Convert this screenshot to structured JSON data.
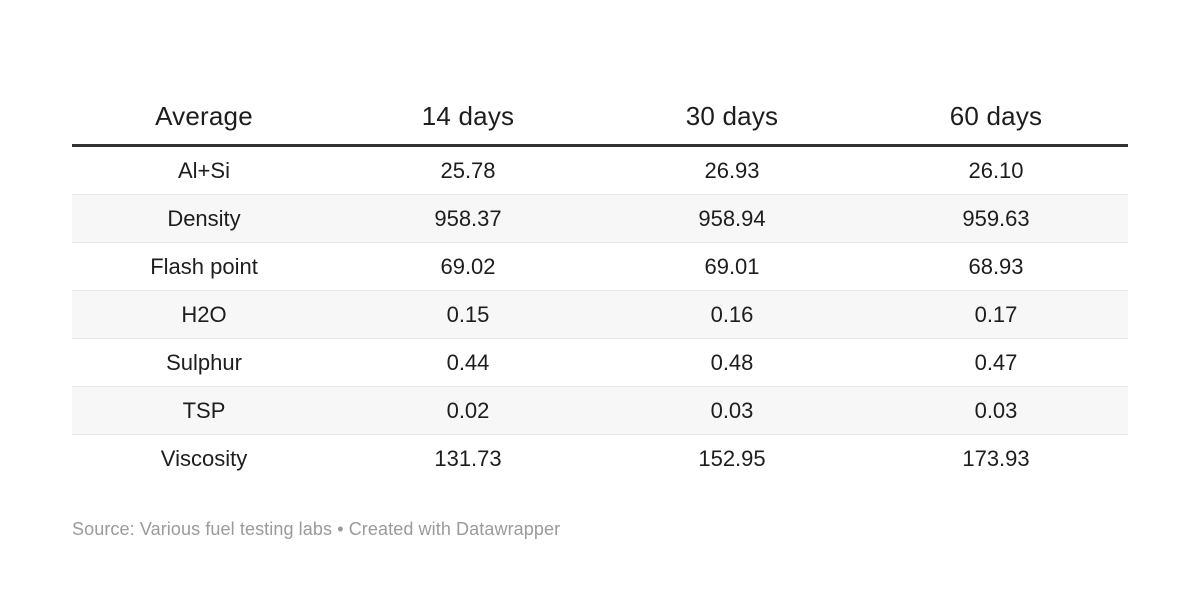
{
  "table": {
    "columns": [
      "Average",
      "14 days",
      "30 days",
      "60 days"
    ],
    "rows": [
      {
        "label": "Al+Si",
        "values": [
          "25.78",
          "26.93",
          "26.10"
        ]
      },
      {
        "label": "Density",
        "values": [
          "958.37",
          "958.94",
          "959.63"
        ]
      },
      {
        "label": "Flash point",
        "values": [
          "69.02",
          "69.01",
          "68.93"
        ]
      },
      {
        "label": "H2O",
        "values": [
          "0.15",
          "0.16",
          "0.17"
        ]
      },
      {
        "label": "Sulphur",
        "values": [
          "0.44",
          "0.48",
          "0.47"
        ]
      },
      {
        "label": "TSP",
        "values": [
          "0.02",
          "0.03",
          "0.03"
        ]
      },
      {
        "label": "Viscosity",
        "values": [
          "131.73",
          "152.95",
          "173.93"
        ]
      }
    ]
  },
  "footer": {
    "text": "Source: Various fuel testing labs • Created with Datawrapper"
  },
  "colors": {
    "text": "#1d1d1d",
    "header_rule": "#333333",
    "row_stripe": "#f7f7f7",
    "row_separator": "#e9e9e9",
    "footer_text": "#9a9a9a",
    "background": "#ffffff"
  },
  "chart_data": {
    "type": "table",
    "title": "",
    "columns": [
      "Average",
      "14 days",
      "30 days",
      "60 days"
    ],
    "rows": [
      [
        "Al+Si",
        25.78,
        26.93,
        26.1
      ],
      [
        "Density",
        958.37,
        958.94,
        959.63
      ],
      [
        "Flash point",
        69.02,
        69.01,
        68.93
      ],
      [
        "H2O",
        0.15,
        0.16,
        0.17
      ],
      [
        "Sulphur",
        0.44,
        0.48,
        0.47
      ],
      [
        "TSP",
        0.02,
        0.03,
        0.03
      ],
      [
        "Viscosity",
        131.73,
        152.95,
        173.93
      ]
    ],
    "layout": {
      "striped_rows": true,
      "header_rule": true,
      "cell_alignment": "center"
    },
    "source": "Various fuel testing labs",
    "attribution": "Created with Datawrapper"
  }
}
